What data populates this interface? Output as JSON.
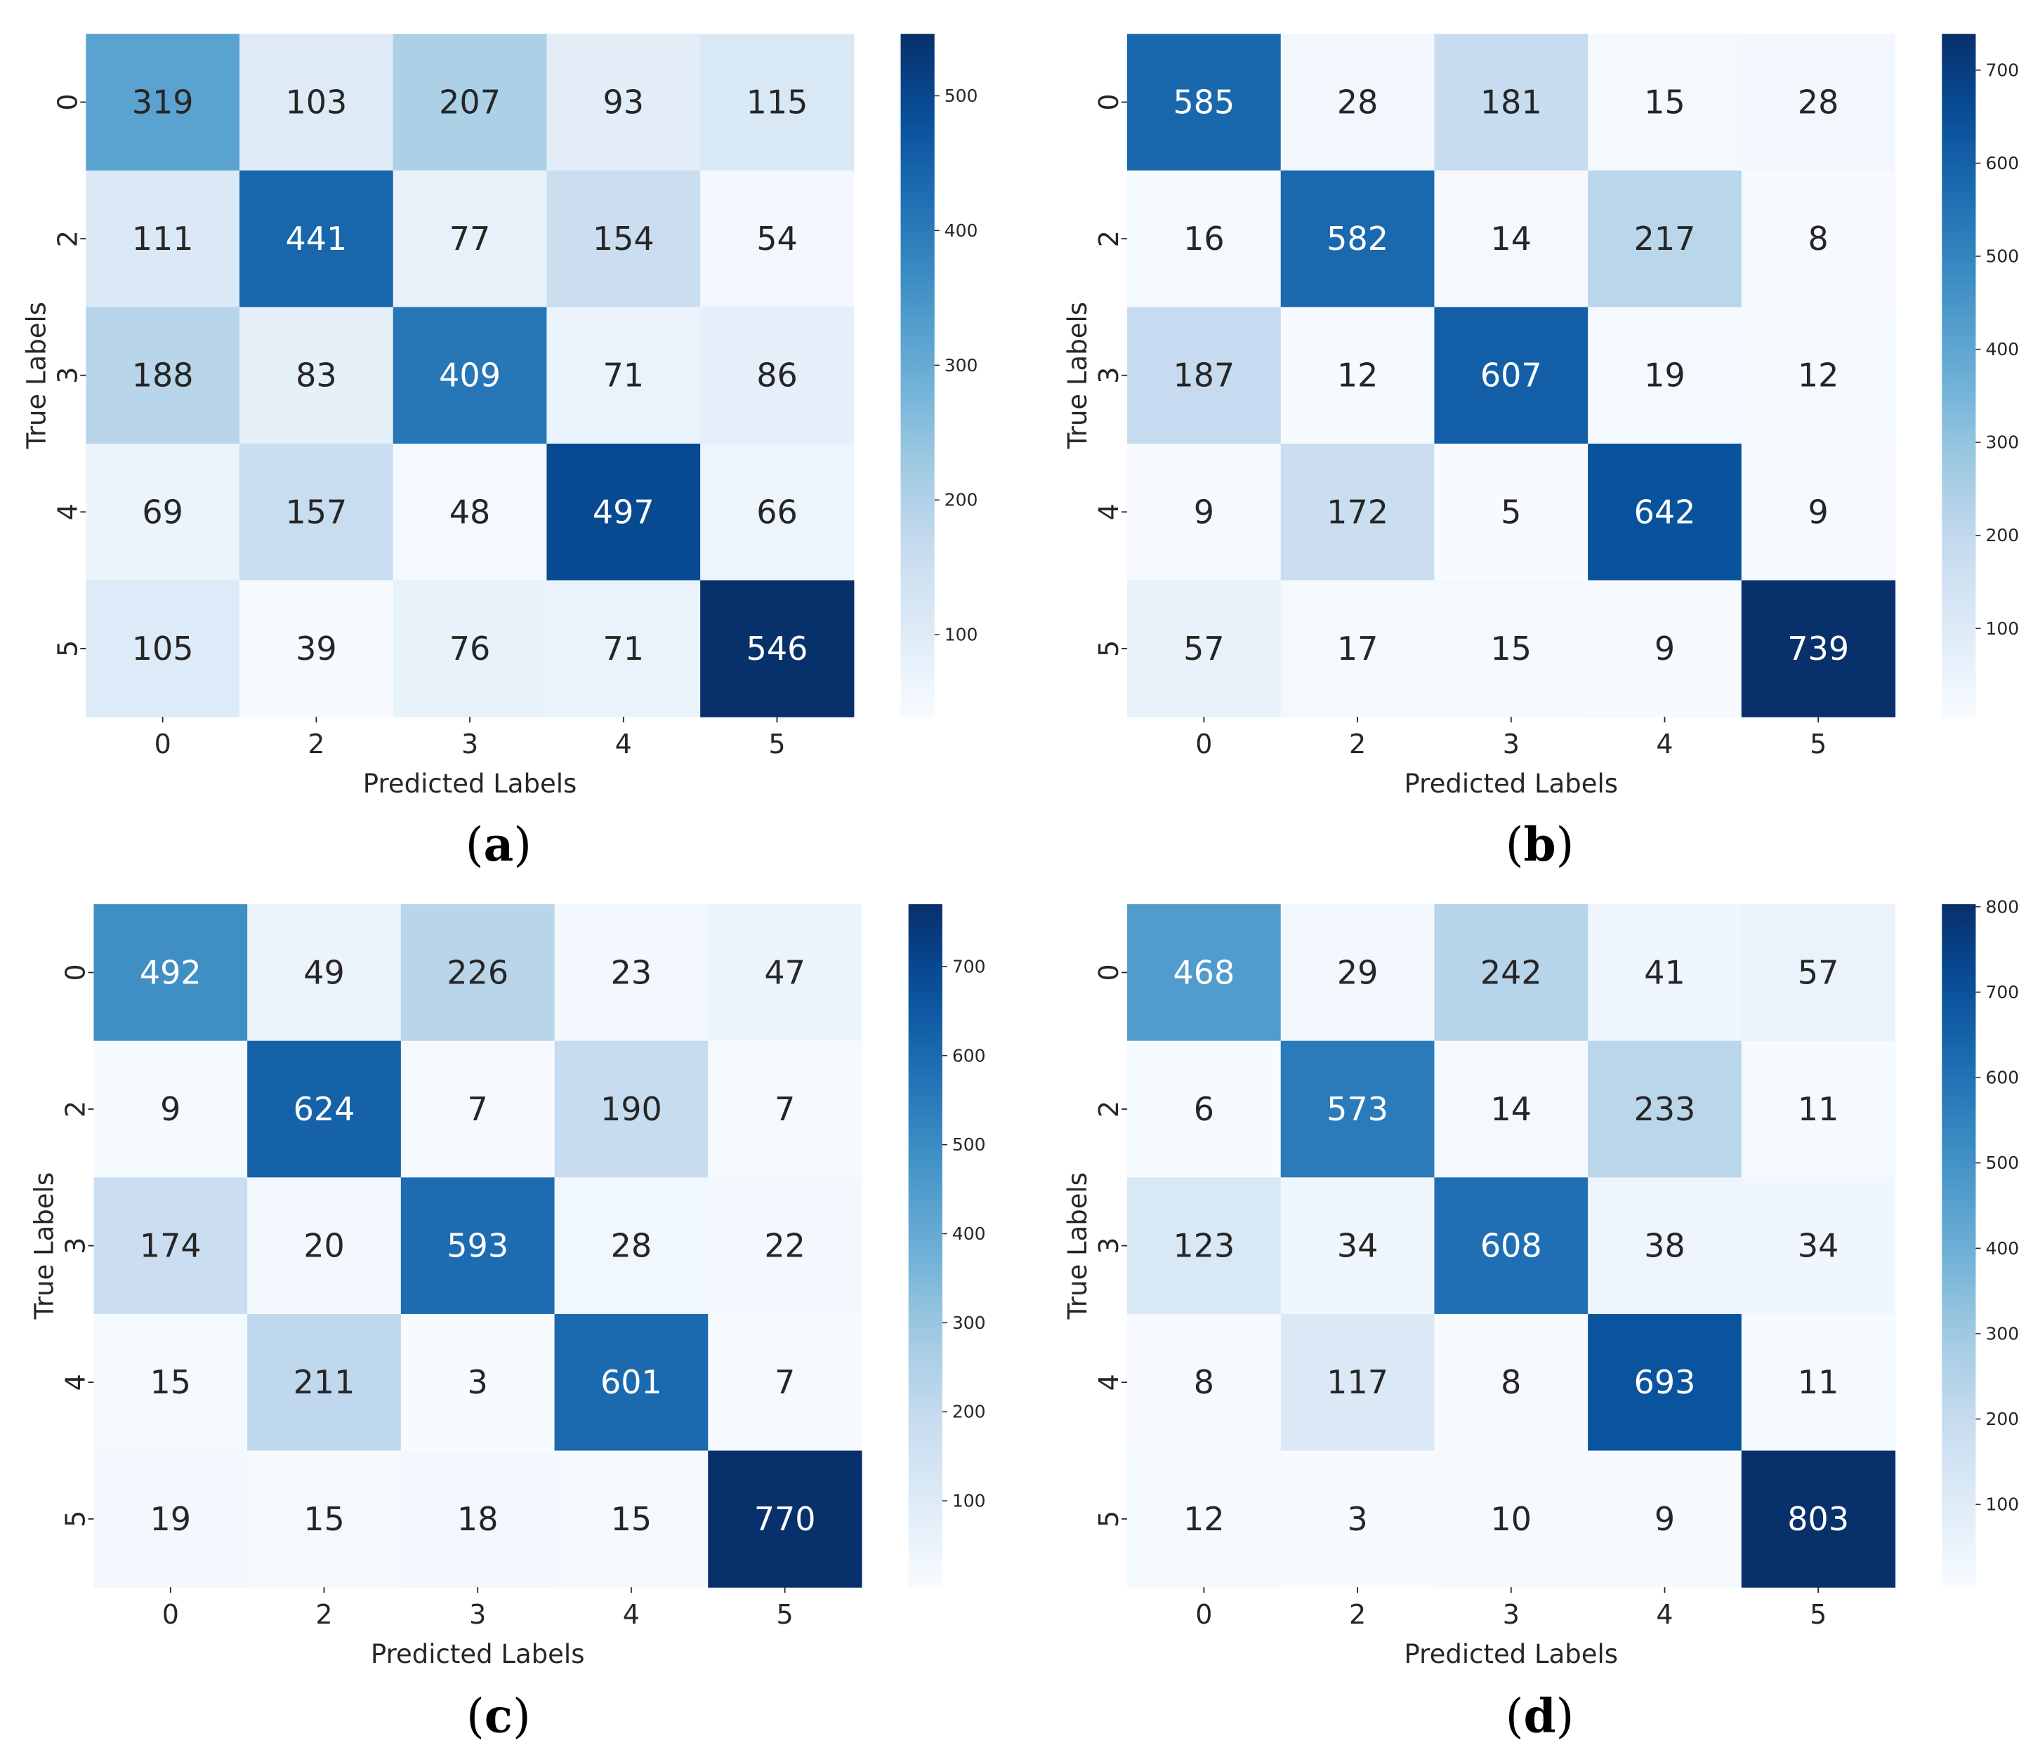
{
  "chart_data": [
    {
      "type": "heatmap",
      "panel_label": "a",
      "xlabel": "Predicted Labels",
      "ylabel": "True Labels",
      "x_categories": [
        "0",
        "2",
        "3",
        "4",
        "5"
      ],
      "y_categories": [
        "0",
        "2",
        "3",
        "4",
        "5"
      ],
      "values": [
        [
          319,
          103,
          207,
          93,
          115
        ],
        [
          111,
          441,
          77,
          154,
          54
        ],
        [
          188,
          83,
          409,
          71,
          86
        ],
        [
          69,
          157,
          48,
          497,
          66
        ],
        [
          105,
          39,
          76,
          71,
          546
        ]
      ],
      "colorbar": {
        "colormap": "Blues",
        "ticks": [
          100,
          200,
          300,
          400,
          500
        ],
        "vmin": 39,
        "vmax": 546
      }
    },
    {
      "type": "heatmap",
      "panel_label": "b",
      "xlabel": "Predicted Labels",
      "ylabel": "True Labels",
      "x_categories": [
        "0",
        "2",
        "3",
        "4",
        "5"
      ],
      "y_categories": [
        "0",
        "2",
        "3",
        "4",
        "5"
      ],
      "values": [
        [
          585,
          28,
          181,
          15,
          28
        ],
        [
          16,
          582,
          14,
          217,
          8
        ],
        [
          187,
          12,
          607,
          19,
          12
        ],
        [
          9,
          172,
          5,
          642,
          9
        ],
        [
          57,
          17,
          15,
          9,
          739
        ]
      ],
      "colorbar": {
        "colormap": "Blues",
        "ticks": [
          100,
          200,
          300,
          400,
          500,
          600,
          700
        ],
        "vmin": 5,
        "vmax": 739
      }
    },
    {
      "type": "heatmap",
      "panel_label": "c",
      "xlabel": "Predicted Labels",
      "ylabel": "True Labels",
      "x_categories": [
        "0",
        "2",
        "3",
        "4",
        "5"
      ],
      "y_categories": [
        "0",
        "2",
        "3",
        "4",
        "5"
      ],
      "values": [
        [
          492,
          49,
          226,
          23,
          47
        ],
        [
          9,
          624,
          7,
          190,
          7
        ],
        [
          174,
          20,
          593,
          28,
          22
        ],
        [
          15,
          211,
          3,
          601,
          7
        ],
        [
          19,
          15,
          18,
          15,
          770
        ]
      ],
      "colorbar": {
        "colormap": "Blues",
        "ticks": [
          100,
          200,
          300,
          400,
          500,
          600,
          700
        ],
        "vmin": 3,
        "vmax": 770
      }
    },
    {
      "type": "heatmap",
      "panel_label": "d",
      "xlabel": "Predicted Labels",
      "ylabel": "True Labels",
      "x_categories": [
        "0",
        "2",
        "3",
        "4",
        "5"
      ],
      "y_categories": [
        "0",
        "2",
        "3",
        "4",
        "5"
      ],
      "values": [
        [
          468,
          29,
          242,
          41,
          57
        ],
        [
          6,
          573,
          14,
          233,
          11
        ],
        [
          123,
          34,
          608,
          38,
          34
        ],
        [
          8,
          117,
          8,
          693,
          11
        ],
        [
          12,
          3,
          10,
          9,
          803
        ]
      ],
      "colorbar": {
        "colormap": "Blues",
        "ticks": [
          100,
          200,
          300,
          400,
          500,
          600,
          700,
          800
        ],
        "vmin": 3,
        "vmax": 803
      }
    }
  ]
}
